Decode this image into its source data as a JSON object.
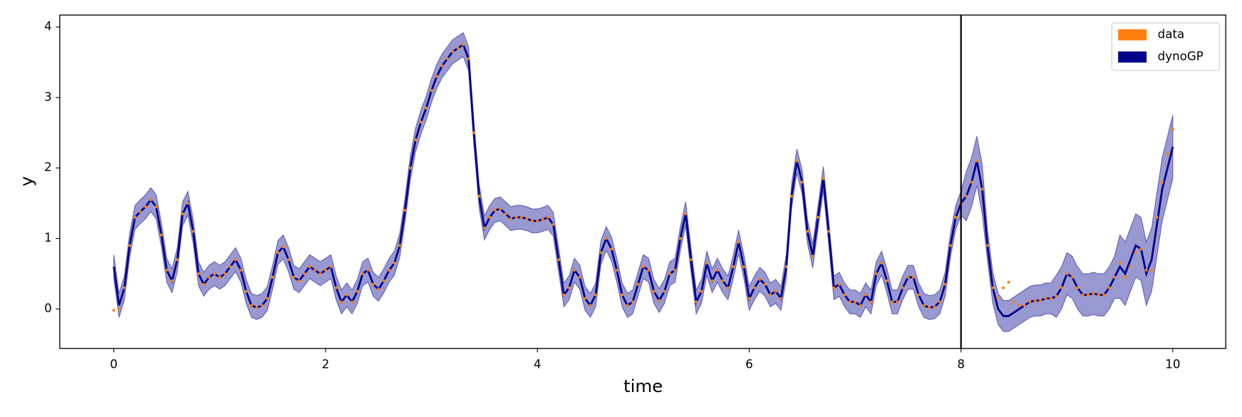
{
  "chart_data": {
    "type": "line",
    "xlabel": "time",
    "ylabel": "y",
    "xlim": [
      -0.51,
      10.5
    ],
    "ylim": [
      -0.56,
      4.17
    ],
    "xticks": [
      0,
      2,
      4,
      6,
      8,
      10
    ],
    "yticks": [
      0,
      1,
      2,
      3,
      4
    ],
    "vline_x": 8,
    "vline_color": "#000000",
    "legend": "upper right",
    "x": [
      0,
      0.05,
      0.1,
      0.15,
      0.2,
      0.25,
      0.3,
      0.35,
      0.4,
      0.45,
      0.5,
      0.55,
      0.6,
      0.65,
      0.7,
      0.75,
      0.8,
      0.85,
      0.9,
      0.95,
      1,
      1.05,
      1.1,
      1.15,
      1.2,
      1.25,
      1.3,
      1.35,
      1.4,
      1.45,
      1.5,
      1.55,
      1.6,
      1.65,
      1.7,
      1.75,
      1.8,
      1.85,
      1.9,
      1.95,
      2,
      2.05,
      2.1,
      2.15,
      2.2,
      2.25,
      2.3,
      2.35,
      2.4,
      2.45,
      2.5,
      2.55,
      2.6,
      2.65,
      2.7,
      2.75,
      2.8,
      2.85,
      2.9,
      2.95,
      3,
      3.05,
      3.1,
      3.15,
      3.2,
      3.25,
      3.3,
      3.35,
      3.4,
      3.45,
      3.5,
      3.55,
      3.6,
      3.65,
      3.7,
      3.75,
      3.8,
      3.85,
      3.9,
      3.95,
      4,
      4.05,
      4.1,
      4.15,
      4.2,
      4.25,
      4.3,
      4.35,
      4.4,
      4.45,
      4.5,
      4.55,
      4.6,
      4.65,
      4.7,
      4.75,
      4.8,
      4.85,
      4.9,
      4.95,
      5,
      5.05,
      5.1,
      5.15,
      5.2,
      5.25,
      5.3,
      5.35,
      5.4,
      5.45,
      5.5,
      5.55,
      5.6,
      5.65,
      5.7,
      5.75,
      5.8,
      5.85,
      5.9,
      5.95,
      6,
      6.05,
      6.1,
      6.15,
      6.2,
      6.25,
      6.3,
      6.35,
      6.4,
      6.45,
      6.5,
      6.55,
      6.6,
      6.65,
      6.7,
      6.75,
      6.8,
      6.85,
      6.9,
      6.95,
      7,
      7.05,
      7.1,
      7.15,
      7.2,
      7.25,
      7.3,
      7.35,
      7.4,
      7.45,
      7.5,
      7.55,
      7.6,
      7.65,
      7.7,
      7.75,
      7.8,
      7.85,
      7.9,
      7.95,
      8,
      8.05,
      8.1,
      8.15,
      8.2,
      8.25,
      8.3,
      8.35,
      8.4,
      8.45,
      8.5,
      8.55,
      8.6,
      8.65,
      8.7,
      8.75,
      8.8,
      8.85,
      8.9,
      8.95,
      9,
      9.05,
      9.1,
      9.15,
      9.2,
      9.25,
      9.3,
      9.35,
      9.4,
      9.45,
      9.5,
      9.55,
      9.6,
      9.65,
      9.7,
      9.75,
      9.8,
      9.85,
      9.9,
      9.95,
      10
    ],
    "series": [
      {
        "name": "data",
        "color": "#ff7f0e",
        "values": [
          -0.02,
          0.0,
          0.3,
          0.9,
          1.3,
          1.38,
          1.45,
          1.55,
          1.45,
          1.05,
          0.55,
          0.4,
          0.7,
          1.35,
          1.5,
          1.1,
          0.5,
          0.35,
          0.45,
          0.5,
          0.45,
          0.5,
          0.6,
          0.7,
          0.55,
          0.25,
          0.05,
          0.02,
          0.05,
          0.15,
          0.45,
          0.8,
          0.88,
          0.7,
          0.45,
          0.4,
          0.5,
          0.6,
          0.55,
          0.5,
          0.55,
          0.6,
          0.3,
          0.1,
          0.2,
          0.1,
          0.25,
          0.5,
          0.55,
          0.35,
          0.28,
          0.4,
          0.55,
          0.65,
          0.9,
          1.4,
          2.0,
          2.4,
          2.65,
          2.85,
          3.1,
          3.3,
          3.45,
          3.55,
          3.65,
          3.7,
          3.75,
          3.55,
          2.5,
          1.6,
          1.15,
          1.3,
          1.4,
          1.42,
          1.35,
          1.28,
          1.3,
          1.3,
          1.28,
          1.25,
          1.25,
          1.27,
          1.3,
          1.2,
          0.7,
          0.2,
          0.3,
          0.55,
          0.45,
          0.15,
          0.05,
          0.2,
          0.8,
          1.0,
          0.85,
          0.55,
          0.2,
          0.05,
          0.1,
          0.35,
          0.6,
          0.55,
          0.25,
          0.12,
          0.25,
          0.5,
          0.55,
          1.0,
          1.35,
          0.7,
          0.1,
          0.25,
          0.65,
          0.4,
          0.55,
          0.4,
          0.3,
          0.6,
          0.95,
          0.6,
          0.15,
          0.3,
          0.42,
          0.35,
          0.2,
          0.25,
          0.15,
          0.6,
          1.6,
          2.1,
          1.8,
          1.1,
          0.75,
          1.3,
          1.85,
          1.1,
          0.3,
          0.35,
          0.2,
          0.1,
          0.1,
          0.05,
          0.2,
          0.1,
          0.5,
          0.65,
          0.4,
          0.1,
          0.1,
          0.3,
          0.45,
          0.45,
          0.2,
          0.05,
          0.02,
          0.03,
          0.1,
          0.35,
          0.9,
          1.3,
          1.5,
          1.6,
          1.8,
          2.1,
          1.7,
          0.9,
          0.3,
          0.15,
          0.3,
          0.38,
          0.1,
          0.05,
          0.05,
          0.1,
          0.12,
          0.12,
          0.15,
          0.15,
          0.18,
          0.3,
          0.5,
          0.45,
          0.3,
          0.2,
          0.2,
          0.22,
          0.2,
          0.2,
          0.3,
          0.45,
          0.65,
          0.45,
          0.6,
          0.8,
          0.85,
          0.55,
          0.55,
          1.3,
          1.8,
          2.2,
          2.55
        ]
      },
      {
        "name": "dynoGP",
        "color": "#00008b",
        "values": [
          0.6,
          0.05,
          0.3,
          0.9,
          1.3,
          1.38,
          1.45,
          1.55,
          1.45,
          1.05,
          0.55,
          0.4,
          0.7,
          1.35,
          1.5,
          1.1,
          0.5,
          0.35,
          0.45,
          0.5,
          0.45,
          0.5,
          0.6,
          0.7,
          0.55,
          0.25,
          0.05,
          0.02,
          0.05,
          0.15,
          0.45,
          0.8,
          0.88,
          0.7,
          0.45,
          0.4,
          0.5,
          0.6,
          0.55,
          0.5,
          0.55,
          0.6,
          0.3,
          0.1,
          0.2,
          0.1,
          0.25,
          0.5,
          0.55,
          0.35,
          0.28,
          0.4,
          0.55,
          0.65,
          0.9,
          1.4,
          2.0,
          2.4,
          2.65,
          2.85,
          3.1,
          3.3,
          3.45,
          3.55,
          3.65,
          3.7,
          3.75,
          3.55,
          2.5,
          1.6,
          1.15,
          1.3,
          1.4,
          1.42,
          1.35,
          1.28,
          1.3,
          1.3,
          1.28,
          1.25,
          1.25,
          1.27,
          1.3,
          1.2,
          0.7,
          0.2,
          0.3,
          0.55,
          0.45,
          0.15,
          0.05,
          0.2,
          0.8,
          1.0,
          0.85,
          0.55,
          0.2,
          0.05,
          0.1,
          0.35,
          0.6,
          0.55,
          0.25,
          0.12,
          0.25,
          0.5,
          0.55,
          1.0,
          1.35,
          0.7,
          0.1,
          0.25,
          0.65,
          0.4,
          0.55,
          0.4,
          0.3,
          0.6,
          0.95,
          0.6,
          0.15,
          0.3,
          0.42,
          0.35,
          0.2,
          0.25,
          0.15,
          0.6,
          1.6,
          2.1,
          1.8,
          1.1,
          0.75,
          1.3,
          1.85,
          1.1,
          0.3,
          0.35,
          0.2,
          0.1,
          0.1,
          0.05,
          0.2,
          0.1,
          0.5,
          0.65,
          0.4,
          0.1,
          0.1,
          0.3,
          0.45,
          0.45,
          0.2,
          0.05,
          0.02,
          0.03,
          0.1,
          0.35,
          0.9,
          1.3,
          1.5,
          1.6,
          1.8,
          2.1,
          1.7,
          0.9,
          0.3,
          0.0,
          -0.1,
          -0.1,
          -0.05,
          0.0,
          0.05,
          0.1,
          0.12,
          0.12,
          0.15,
          0.15,
          0.18,
          0.3,
          0.5,
          0.45,
          0.3,
          0.2,
          0.2,
          0.22,
          0.2,
          0.2,
          0.3,
          0.45,
          0.6,
          0.5,
          0.7,
          0.9,
          0.85,
          0.5,
          0.7,
          1.2,
          1.7,
          2.0,
          2.3
        ],
        "upper": [
          0.77,
          0.22,
          0.47,
          1.07,
          1.47,
          1.55,
          1.62,
          1.72,
          1.62,
          1.22,
          0.72,
          0.57,
          0.87,
          1.52,
          1.67,
          1.27,
          0.67,
          0.52,
          0.62,
          0.67,
          0.62,
          0.67,
          0.77,
          0.87,
          0.72,
          0.42,
          0.22,
          0.19,
          0.22,
          0.32,
          0.62,
          0.97,
          1.05,
          0.87,
          0.62,
          0.57,
          0.67,
          0.77,
          0.72,
          0.67,
          0.72,
          0.77,
          0.47,
          0.27,
          0.37,
          0.27,
          0.42,
          0.67,
          0.72,
          0.52,
          0.45,
          0.57,
          0.72,
          0.82,
          1.07,
          1.57,
          2.17,
          2.57,
          2.82,
          3.02,
          3.27,
          3.47,
          3.62,
          3.72,
          3.82,
          3.87,
          3.92,
          3.72,
          2.67,
          1.77,
          1.32,
          1.47,
          1.57,
          1.59,
          1.52,
          1.45,
          1.47,
          1.47,
          1.45,
          1.42,
          1.42,
          1.44,
          1.47,
          1.37,
          0.87,
          0.37,
          0.47,
          0.72,
          0.62,
          0.32,
          0.22,
          0.37,
          0.97,
          1.17,
          1.02,
          0.72,
          0.37,
          0.22,
          0.27,
          0.52,
          0.77,
          0.72,
          0.42,
          0.29,
          0.42,
          0.67,
          0.72,
          1.17,
          1.52,
          0.87,
          0.27,
          0.42,
          0.82,
          0.57,
          0.72,
          0.57,
          0.47,
          0.77,
          1.12,
          0.77,
          0.32,
          0.47,
          0.59,
          0.52,
          0.37,
          0.42,
          0.32,
          0.77,
          1.77,
          2.27,
          1.97,
          1.27,
          0.92,
          1.47,
          2.02,
          1.27,
          0.47,
          0.52,
          0.37,
          0.27,
          0.27,
          0.22,
          0.37,
          0.27,
          0.67,
          0.82,
          0.57,
          0.27,
          0.27,
          0.47,
          0.62,
          0.62,
          0.37,
          0.22,
          0.19,
          0.2,
          0.27,
          0.52,
          1.07,
          1.47,
          1.67,
          1.95,
          2.15,
          2.45,
          2.05,
          1.12,
          0.52,
          0.22,
          0.12,
          0.12,
          0.17,
          0.22,
          0.27,
          0.32,
          0.34,
          0.34,
          0.37,
          0.37,
          0.48,
          0.6,
          0.8,
          0.75,
          0.6,
          0.5,
          0.5,
          0.52,
          0.5,
          0.5,
          0.6,
          0.75,
          1.05,
          0.95,
          1.15,
          1.35,
          1.3,
          0.95,
          1.15,
          1.65,
          2.15,
          2.45,
          2.75
        ],
        "lower": [
          0.43,
          -0.12,
          0.13,
          0.73,
          1.13,
          1.21,
          1.28,
          1.38,
          1.28,
          0.88,
          0.38,
          0.23,
          0.53,
          1.18,
          1.33,
          0.93,
          0.33,
          0.18,
          0.28,
          0.33,
          0.28,
          0.33,
          0.43,
          0.53,
          0.38,
          0.08,
          -0.12,
          -0.15,
          -0.12,
          -0.02,
          0.28,
          0.63,
          0.71,
          0.53,
          0.28,
          0.23,
          0.33,
          0.43,
          0.38,
          0.33,
          0.38,
          0.43,
          0.13,
          -0.07,
          0.03,
          -0.07,
          0.08,
          0.33,
          0.38,
          0.18,
          0.11,
          0.23,
          0.38,
          0.48,
          0.73,
          1.23,
          1.83,
          2.23,
          2.48,
          2.68,
          2.93,
          3.13,
          3.28,
          3.38,
          3.48,
          3.53,
          3.58,
          3.38,
          2.33,
          1.43,
          0.98,
          1.13,
          1.23,
          1.25,
          1.18,
          1.11,
          1.13,
          1.13,
          1.11,
          1.08,
          1.08,
          1.1,
          1.13,
          1.03,
          0.53,
          0.03,
          0.13,
          0.38,
          0.28,
          -0.02,
          -0.12,
          0.03,
          0.63,
          0.83,
          0.68,
          0.38,
          0.03,
          -0.12,
          -0.07,
          0.18,
          0.43,
          0.38,
          0.08,
          -0.05,
          0.08,
          0.33,
          0.38,
          0.83,
          1.18,
          0.53,
          -0.07,
          0.08,
          0.48,
          0.23,
          0.38,
          0.23,
          0.13,
          0.43,
          0.78,
          0.43,
          -0.02,
          0.13,
          0.25,
          0.18,
          0.03,
          0.08,
          -0.02,
          0.43,
          1.43,
          1.93,
          1.63,
          0.93,
          0.58,
          1.13,
          1.68,
          0.93,
          0.13,
          0.18,
          0.03,
          -0.07,
          -0.07,
          -0.12,
          0.03,
          -0.07,
          0.33,
          0.48,
          0.23,
          -0.07,
          -0.07,
          0.13,
          0.28,
          0.28,
          0.03,
          -0.12,
          -0.15,
          -0.14,
          -0.07,
          0.18,
          0.73,
          1.13,
          1.33,
          1.25,
          1.45,
          1.75,
          1.35,
          0.68,
          0.08,
          -0.22,
          -0.32,
          -0.32,
          -0.27,
          -0.22,
          -0.17,
          -0.12,
          -0.1,
          -0.1,
          -0.07,
          -0.07,
          -0.12,
          0.0,
          0.2,
          0.15,
          0.0,
          -0.1,
          -0.1,
          -0.08,
          -0.1,
          -0.1,
          0.0,
          0.15,
          0.15,
          0.05,
          0.25,
          0.45,
          0.4,
          0.05,
          0.25,
          0.75,
          1.25,
          1.55,
          1.85
        ]
      }
    ]
  }
}
